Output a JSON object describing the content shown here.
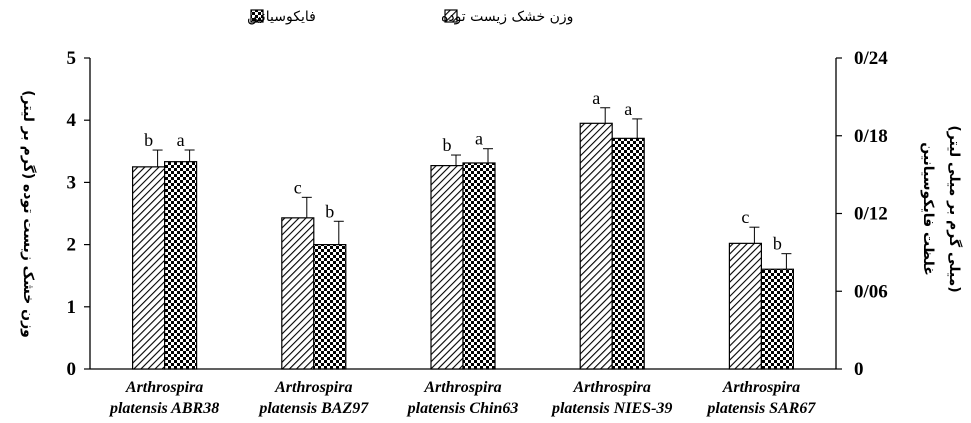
{
  "chart_data": {
    "type": "bar",
    "categories": [
      [
        "Arthrospira",
        "platensis ABR38"
      ],
      [
        "Arthrospira",
        "platensis BAZ97"
      ],
      [
        "Arthrospira",
        "platensis Chin63"
      ],
      [
        "Arthrospira",
        "platensis NIES-39"
      ],
      [
        "Arthrospira",
        "platensis SAR67"
      ]
    ],
    "series": [
      {
        "name": "وزن خشک زیست توده",
        "axis": "left",
        "pattern": "diagonal-hatch",
        "values": [
          3.25,
          2.43,
          3.27,
          3.95,
          2.02
        ],
        "errors": [
          0.27,
          0.33,
          0.17,
          0.25,
          0.26
        ],
        "significance": [
          "b",
          "c",
          "b",
          "a",
          "c"
        ]
      },
      {
        "name": "فایکوسیانین",
        "axis": "right",
        "pattern": "checkered",
        "values": [
          0.16,
          0.096,
          0.159,
          0.178,
          0.077
        ],
        "errors": [
          0.009,
          0.018,
          0.011,
          0.015,
          0.012
        ],
        "significance": [
          "a",
          "b",
          "a",
          "a",
          "b"
        ]
      }
    ],
    "ylabel_left": "وزن خشک زیست توده (گرم بر لیتر)",
    "ylabel_right_line1": "غلظت فایکوسیانین",
    "ylabel_right_line2": "(میلی گرم بر میلی لیتر)",
    "ylim_left": [
      0,
      5
    ],
    "yticks_left": [
      "0",
      "1",
      "2",
      "3",
      "4",
      "5"
    ],
    "ylim_right": [
      0,
      0.24
    ],
    "yticks_right": [
      "0",
      "0/06",
      "0/12",
      "0/18",
      "0/24"
    ],
    "grid": false,
    "legend_position": "top-center"
  }
}
